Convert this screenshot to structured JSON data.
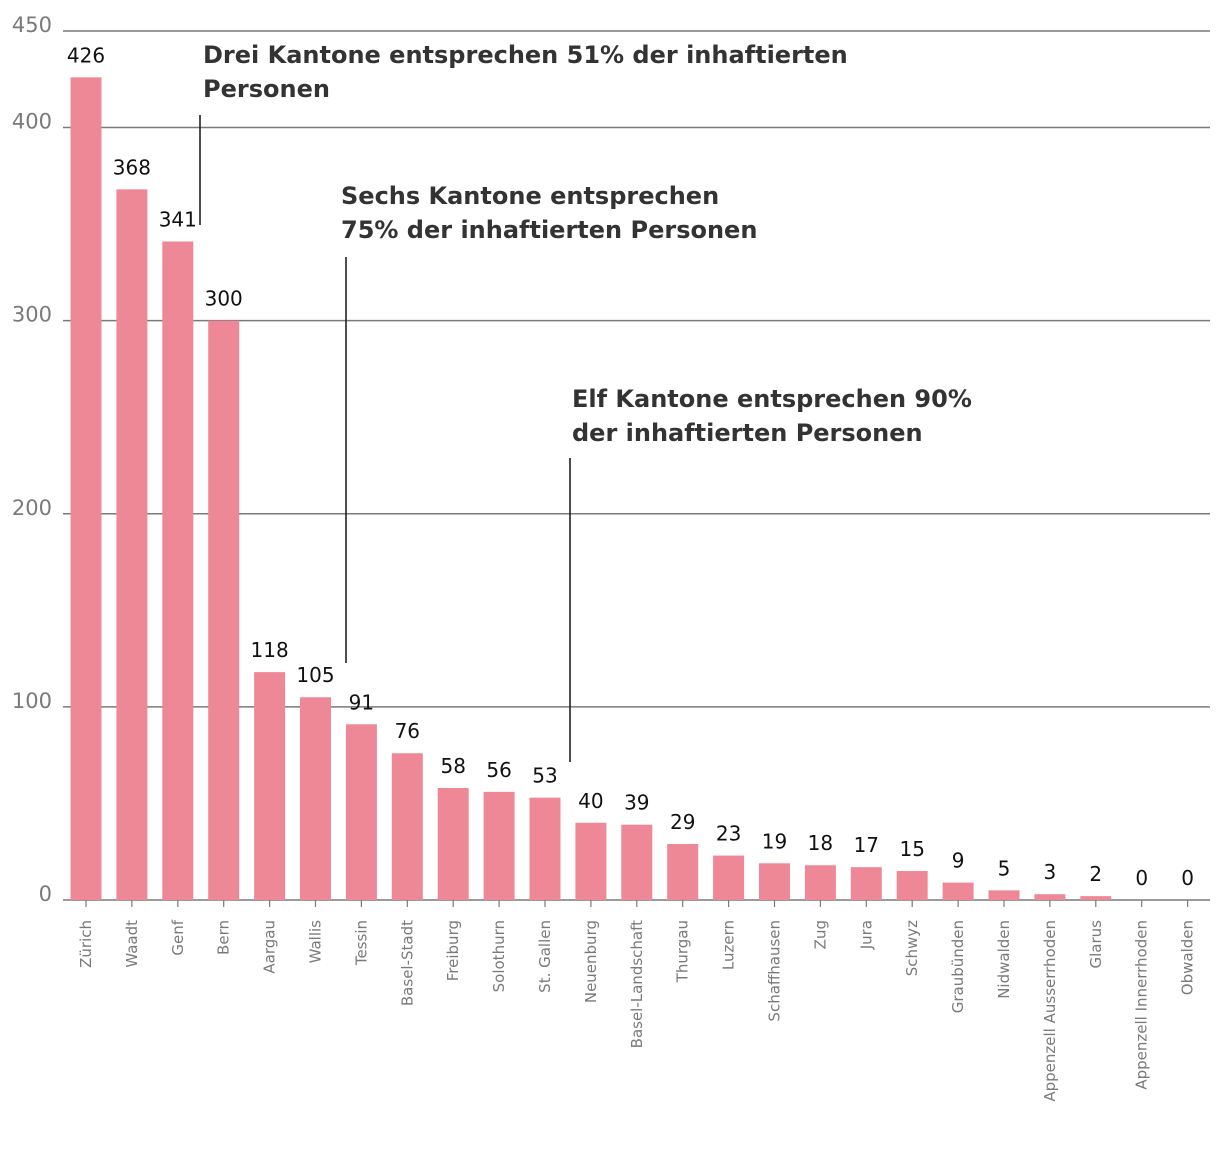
{
  "chart_data": {
    "type": "bar",
    "title": "",
    "xlabel": "",
    "ylabel": "",
    "ylim": [
      0,
      450
    ],
    "yticks": [
      0,
      100,
      200,
      300,
      400,
      450
    ],
    "grid": true,
    "color": "#ef8896",
    "categories": [
      "Zürich",
      "Waadt",
      "Genf",
      "Bern",
      "Aargau",
      "Wallis",
      "Tessin",
      "Basel-Stadt",
      "Freiburg",
      "Solothurn",
      "St. Gallen",
      "Neuenburg",
      "Basel-Landschaft",
      "Thurgau",
      "Luzern",
      "Schaffhausen",
      "Zug",
      "Jura",
      "Schwyz",
      "Graubünden",
      "Nidwalden",
      "Appenzell Ausserrhoden",
      "Glarus",
      "Appenzell Innerrhoden",
      "Obwalden"
    ],
    "values": [
      426,
      368,
      341,
      300,
      118,
      105,
      91,
      76,
      58,
      56,
      53,
      40,
      39,
      29,
      23,
      19,
      18,
      17,
      15,
      9,
      5,
      3,
      2,
      0,
      0
    ],
    "annotations": [
      {
        "lines": [
          "Drei Kantone entsprechen 51% der inhaftierten",
          "Personen"
        ],
        "after_index": 2
      },
      {
        "lines": [
          "Sechs Kantone entsprechen",
          "75% der inhaftierten Personen"
        ],
        "after_index": 5
      },
      {
        "lines": [
          "Elf Kantone entsprechen 90%",
          "der inhaftierten Personen"
        ],
        "after_index": 10
      }
    ]
  }
}
